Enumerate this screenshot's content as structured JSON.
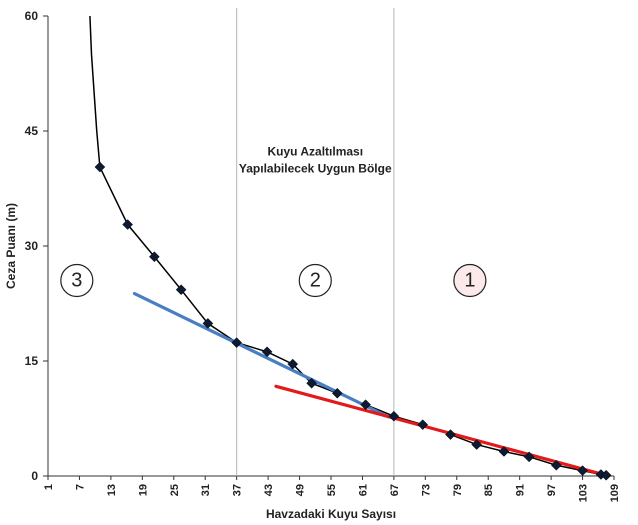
{
  "chart_data": {
    "type": "scatter",
    "xlabel": "Havzadaki Kuyu Sayısı",
    "ylabel": "Ceza Puanı (m)",
    "xlim": [
      1,
      109
    ],
    "ylim": [
      0,
      60
    ],
    "x_ticks": [
      "1",
      "7",
      "13",
      "19",
      "25",
      "31",
      "37",
      "43",
      "49",
      "55",
      "61",
      "67",
      "73",
      "79",
      "85",
      "91",
      "97",
      "103",
      "109"
    ],
    "y_ticks": [
      "0",
      "15",
      "30",
      "45",
      "60"
    ],
    "x_tick_values": [
      1,
      7,
      13,
      19,
      25,
      31,
      37,
      43,
      49,
      55,
      61,
      67,
      73,
      79,
      85,
      91,
      97,
      103,
      109
    ],
    "y_tick_values": [
      0,
      15,
      30,
      45,
      60
    ],
    "grid": "vertical lines at zone boundaries",
    "boundaries": [
      37,
      67
    ],
    "series": [
      {
        "type": "line-markers",
        "color": "#000000",
        "marker": "diamond",
        "points": [
          [
            10.9,
            40.3
          ],
          [
            16.2,
            32.8
          ],
          [
            21.3,
            28.6
          ],
          [
            26.4,
            24.3
          ],
          [
            31.5,
            19.9
          ],
          [
            37.0,
            17.4
          ],
          [
            42.8,
            16.2
          ],
          [
            47.7,
            14.6
          ],
          [
            51.3,
            12.1
          ],
          [
            56.2,
            10.8
          ],
          [
            61.6,
            9.3
          ],
          [
            67.0,
            7.8
          ],
          [
            72.5,
            6.7
          ],
          [
            77.8,
            5.4
          ],
          [
            82.8,
            4.1
          ],
          [
            88.0,
            3.2
          ],
          [
            92.8,
            2.5
          ],
          [
            98.0,
            1.4
          ],
          [
            103.0,
            0.7
          ],
          [
            106.5,
            0.2
          ],
          [
            107.5,
            0.1
          ]
        ]
      },
      {
        "type": "curve",
        "color": "#000000",
        "points": [
          [
            9.0,
            60
          ],
          [
            9.3,
            55
          ],
          [
            9.8,
            50
          ],
          [
            10.3,
            45
          ],
          [
            10.9,
            40.3
          ]
        ]
      },
      {
        "type": "trendline",
        "color": "#4a7ec2",
        "points": [
          [
            17.5,
            23.8
          ],
          [
            66.0,
            7.7
          ]
        ]
      },
      {
        "type": "trendline",
        "color": "#e31a1c",
        "points": [
          [
            44.5,
            11.7
          ],
          [
            108.0,
            0.0
          ]
        ]
      }
    ],
    "annotations": [
      {
        "text_line1": "Kuyu Azaltılması",
        "text_line2": "Yapılabilecek Uygun Bölge"
      }
    ],
    "zones": [
      {
        "label": "3",
        "fill": "#ffffff"
      },
      {
        "label": "2",
        "fill": "#ffffff"
      },
      {
        "label": "1",
        "fill": "#fce9ea"
      }
    ]
  }
}
